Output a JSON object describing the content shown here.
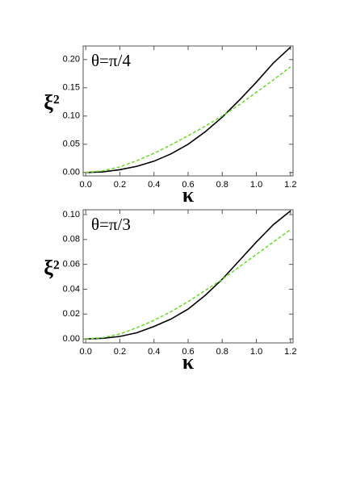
{
  "chart_data": [
    {
      "type": "line",
      "annotation": "θ=π/4",
      "x_label": "κ",
      "y_label": "ξ²",
      "x": [
        0,
        0.1,
        0.2,
        0.3,
        0.4,
        0.5,
        0.6,
        0.7,
        0.8,
        0.9,
        1.0,
        1.1,
        1.2
      ],
      "series": [
        {
          "color": "#000000",
          "dash": false,
          "values": [
            0,
            0.001,
            0.005,
            0.011,
            0.02,
            0.033,
            0.05,
            0.072,
            0.098,
            0.128,
            0.16,
            0.194,
            0.222
          ]
        },
        {
          "color": "#66dd22",
          "dash": true,
          "values": [
            0,
            0.003,
            0.01,
            0.021,
            0.034,
            0.049,
            0.065,
            0.082,
            0.1,
            0.12,
            0.142,
            0.164,
            0.187
          ]
        }
      ],
      "xlim": [
        -0.015,
        1.215
      ],
      "xticks": [
        {
          "value": 0,
          "label": "0.0"
        },
        0.2,
        0.4,
        0.6,
        0.8,
        {
          "value": 1,
          "label": "1.0"
        },
        1.2
      ],
      "ylim": [
        -0.006,
        0.224
      ],
      "yticks": [
        {
          "value": 0,
          "label": "0.00"
        },
        0.05,
        {
          "value": 0.1,
          "label": "0.10"
        },
        0.15,
        {
          "value": 0.2,
          "label": "0.20"
        }
      ]
    },
    {
      "type": "line",
      "annotation": "θ=π/3",
      "x_label": "κ",
      "y_label": "ξ²",
      "x": [
        0,
        0.1,
        0.2,
        0.3,
        0.4,
        0.5,
        0.6,
        0.7,
        0.8,
        0.9,
        1.0,
        1.1,
        1.2
      ],
      "series": [
        {
          "color": "#000000",
          "dash": false,
          "values": [
            0,
            0.0005,
            0.002,
            0.005,
            0.01,
            0.016,
            0.024,
            0.035,
            0.048,
            0.063,
            0.078,
            0.092,
            0.103
          ]
        },
        {
          "color": "#66dd22",
          "dash": true,
          "values": [
            0,
            0.001,
            0.004,
            0.009,
            0.015,
            0.022,
            0.03,
            0.039,
            0.048,
            0.058,
            0.068,
            0.078,
            0.088
          ]
        }
      ],
      "xlim": [
        -0.015,
        1.215
      ],
      "xticks": [
        {
          "value": 0,
          "label": "0.0"
        },
        0.2,
        0.4,
        0.6,
        0.8,
        {
          "value": 1,
          "label": "1.0"
        },
        1.2
      ],
      "ylim": [
        -0.0032,
        0.1039
      ],
      "yticks": [
        {
          "value": 0,
          "label": "0.00"
        },
        0.02,
        0.04,
        0.06,
        0.08,
        {
          "value": 0.1,
          "label": "0.10"
        }
      ]
    }
  ]
}
